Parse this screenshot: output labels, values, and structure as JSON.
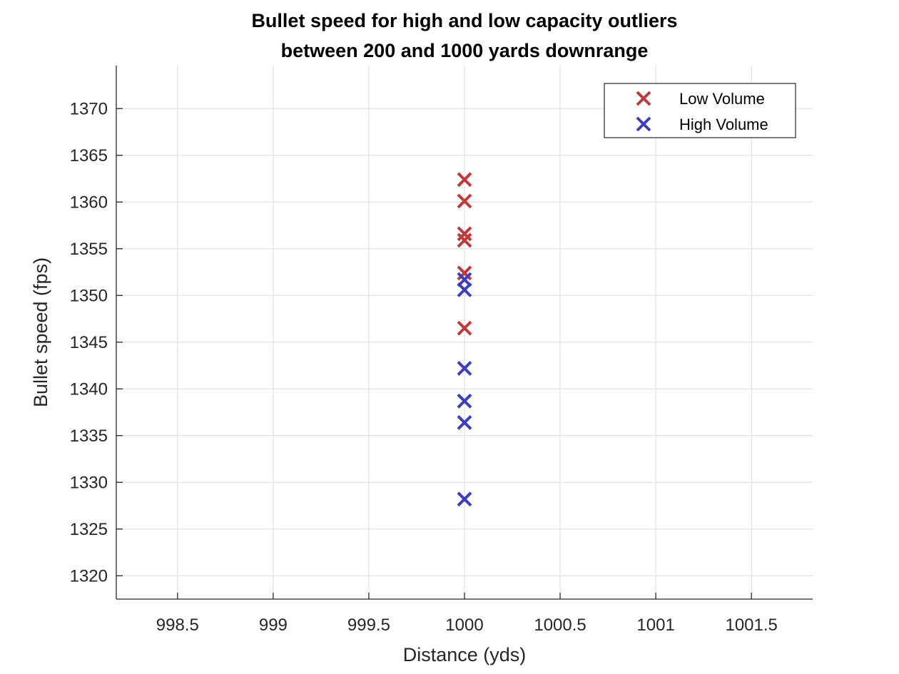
{
  "chart_data": {
    "type": "scatter",
    "title": [
      "Bullet speed for high and low capacity outliers",
      "between 200 and 1000 yards downrange"
    ],
    "xlabel": "Distance (yds)",
    "ylabel": "Bullet speed (fps)",
    "xlim": [
      998.18,
      1001.82
    ],
    "ylim": [
      1317.5,
      1374.6
    ],
    "xticks": [
      "998.5",
      "999",
      "999.5",
      "1000",
      "1000.5",
      "1001",
      "1001.5"
    ],
    "yticks": [
      "1320",
      "1325",
      "1330",
      "1335",
      "1340",
      "1345",
      "1350",
      "1355",
      "1360",
      "1365",
      "1370"
    ],
    "grid": true,
    "legend_position": "top-right",
    "marker": "x",
    "series": [
      {
        "name": "Low Volume",
        "color": "#c0393b",
        "x": [
          1000,
          1000,
          1000,
          1000,
          1000,
          1000
        ],
        "y": [
          1362.4,
          1360.1,
          1356.6,
          1355.9,
          1352.4,
          1346.5
        ]
      },
      {
        "name": "High Volume",
        "color": "#3d3dbf",
        "x": [
          1000,
          1000,
          1000,
          1000,
          1000,
          1000
        ],
        "y": [
          1351.7,
          1350.6,
          1342.2,
          1338.7,
          1336.4,
          1328.2
        ]
      }
    ]
  }
}
